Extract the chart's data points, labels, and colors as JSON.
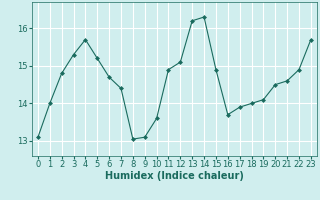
{
  "x": [
    0,
    1,
    2,
    3,
    4,
    5,
    6,
    7,
    8,
    9,
    10,
    11,
    12,
    13,
    14,
    15,
    16,
    17,
    18,
    19,
    20,
    21,
    22,
    23
  ],
  "y": [
    13.1,
    14.0,
    14.8,
    15.3,
    15.7,
    15.2,
    14.7,
    14.4,
    13.05,
    13.1,
    13.6,
    14.9,
    15.1,
    16.2,
    16.3,
    14.9,
    13.7,
    13.9,
    14.0,
    14.1,
    14.5,
    14.6,
    14.9,
    15.7
  ],
  "line_color": "#1a6b5e",
  "marker": "D",
  "marker_size": 2,
  "bg_color": "#d0eeee",
  "grid_color": "#ffffff",
  "xlabel": "Humidex (Indice chaleur)",
  "ylabel": "",
  "yticks": [
    13,
    14,
    15,
    16
  ],
  "xticks": [
    0,
    1,
    2,
    3,
    4,
    5,
    6,
    7,
    8,
    9,
    10,
    11,
    12,
    13,
    14,
    15,
    16,
    17,
    18,
    19,
    20,
    21,
    22,
    23
  ],
  "ylim": [
    12.6,
    16.7
  ],
  "xlim": [
    -0.5,
    23.5
  ],
  "label_color": "#1a6b5e",
  "tick_color": "#1a6b5e",
  "xlabel_fontsize": 7,
  "tick_fontsize": 6
}
